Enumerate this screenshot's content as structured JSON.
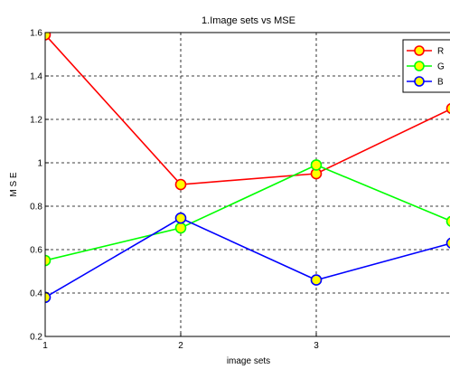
{
  "chart_data": {
    "type": "line",
    "title": "1.Image sets vs MSE",
    "xlabel": "image sets",
    "ylabel": "M S E",
    "x": [
      1,
      2,
      3,
      4
    ],
    "xlim": [
      1,
      4
    ],
    "ylim": [
      0.2,
      1.6
    ],
    "xticks": [
      "1",
      "2",
      "3"
    ],
    "yticks": [
      "0.2",
      "0.4",
      "0.6",
      "0.8",
      "1",
      "1.2",
      "1.4",
      "1.6"
    ],
    "grid": true,
    "legend_position": "top-right",
    "series": [
      {
        "name": "R",
        "color": "#ff0000",
        "marker_fill": "#ffff00",
        "values": [
          1.59,
          0.9,
          0.95,
          1.25
        ]
      },
      {
        "name": "G",
        "color": "#00ff00",
        "marker_fill": "#ffff00",
        "values": [
          0.55,
          0.7,
          0.99,
          0.73
        ]
      },
      {
        "name": "B",
        "color": "#0000ff",
        "marker_fill": "#ffff00",
        "values": [
          0.38,
          0.745,
          0.46,
          0.63
        ]
      }
    ]
  }
}
